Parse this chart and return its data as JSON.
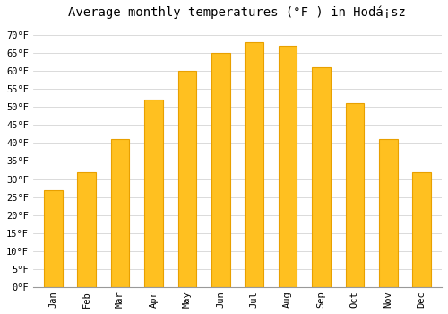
{
  "title": "Average monthly temperatures (°F ) in Hodá¡sz",
  "months": [
    "Jan",
    "Feb",
    "Mar",
    "Apr",
    "May",
    "Jun",
    "Jul",
    "Aug",
    "Sep",
    "Oct",
    "Nov",
    "Dec"
  ],
  "values": [
    27,
    32,
    41,
    52,
    60,
    65,
    68,
    67,
    61,
    51,
    41,
    32
  ],
  "bar_color": "#FFC020",
  "bar_edge_color": "#E8A000",
  "background_color": "#FFFFFF",
  "grid_color": "#CCCCCC",
  "yticks": [
    0,
    5,
    10,
    15,
    20,
    25,
    30,
    35,
    40,
    45,
    50,
    55,
    60,
    65,
    70
  ],
  "ylim": [
    0,
    73
  ],
  "title_fontsize": 10,
  "tick_fontsize": 7.5,
  "font_family": "monospace",
  "bar_width": 0.55
}
